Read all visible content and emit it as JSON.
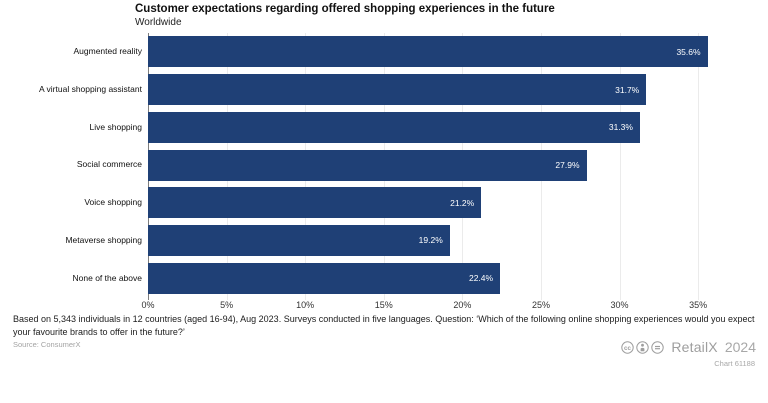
{
  "header": {
    "title": "Customer expectations regarding offered shopping experiences in the future",
    "subtitle": "Worldwide"
  },
  "chart_data": {
    "type": "bar",
    "orientation": "horizontal",
    "title": "Customer expectations regarding offered shopping experiences in the future",
    "subtitle": "Worldwide",
    "categories": [
      "Augmented reality",
      "A virtual shopping assistant",
      "Live shopping",
      "Social commerce",
      "Voice shopping",
      "Metaverse shopping",
      "None of the above"
    ],
    "values": [
      35.6,
      31.7,
      31.3,
      27.9,
      21.2,
      19.2,
      22.4
    ],
    "value_labels": [
      "35.6%",
      "31.7%",
      "31.3%",
      "27.9%",
      "21.2%",
      "19.2%",
      "22.4%"
    ],
    "x_ticks": [
      "0%",
      "5%",
      "10%",
      "15%",
      "20%",
      "25%",
      "30%",
      "35%"
    ],
    "x_tick_values": [
      0,
      5,
      10,
      15,
      20,
      25,
      30,
      35
    ],
    "xlim": [
      0,
      36.9
    ],
    "xlabel": "",
    "ylabel": "",
    "grid": true,
    "bar_color": "#1f4076",
    "value_label_color": "#ffffff"
  },
  "footer": {
    "note": "Based on 5,343 individuals in 12 countries (aged 16-94), Aug 2023. Surveys conducted in five languages. Question: ‘Which of the following online shopping experiences would you expect your favourite brands to offer in the future?’",
    "source": "Source: ConsumerX",
    "license_icons": [
      "cc-icon",
      "attribution-icon",
      "no-derivatives-icon"
    ],
    "brand": "RetailX",
    "year": "2024",
    "chart_id": "Chart 61188"
  }
}
